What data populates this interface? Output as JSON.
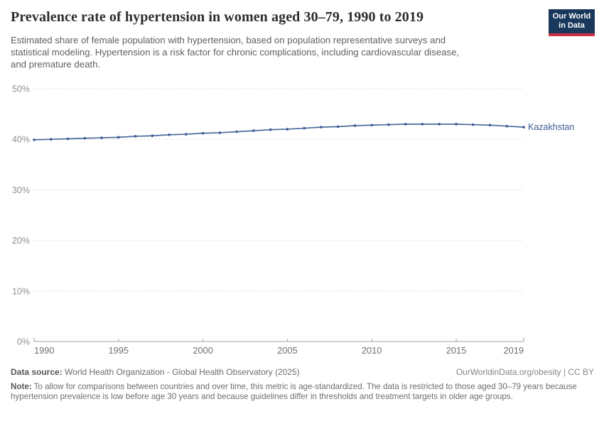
{
  "header": {
    "title": "Prevalence rate of hypertension in women aged 30–79, 1990 to 2019",
    "subtitle": "Estimated share of female population with hypertension, based on population representative surveys and\nstatistical modeling. Hypertension is a risk factor for chronic complications, including cardiovascular disease,\nand premature death.",
    "logo": {
      "line1": "Our World",
      "line2": "in Data",
      "bg_color": "#1a385c",
      "stripe_color": "#cf2e41"
    }
  },
  "chart_data": {
    "type": "line",
    "title": "Prevalence rate of hypertension in women aged 30–79, 1990 to 2019",
    "entity": "Kazakhstan",
    "unit": "%",
    "x": [
      1990,
      1991,
      1992,
      1993,
      1994,
      1995,
      1996,
      1997,
      1998,
      1999,
      2000,
      2001,
      2002,
      2003,
      2004,
      2005,
      2006,
      2007,
      2008,
      2009,
      2010,
      2011,
      2012,
      2013,
      2014,
      2015,
      2016,
      2017,
      2018,
      2019
    ],
    "values": [
      39.9,
      40.0,
      40.1,
      40.2,
      40.3,
      40.4,
      40.6,
      40.7,
      40.9,
      41.0,
      41.2,
      41.3,
      41.5,
      41.7,
      41.9,
      42.0,
      42.2,
      42.4,
      42.5,
      42.7,
      42.8,
      42.9,
      43.0,
      43.0,
      43.0,
      43.0,
      42.9,
      42.8,
      42.6,
      42.4
    ],
    "ylim": [
      0,
      50
    ],
    "yticks": [
      0,
      10,
      20,
      30,
      40,
      50
    ],
    "ytick_suffix": "%",
    "xticks": [
      1990,
      1995,
      2000,
      2005,
      2010,
      2015,
      2019
    ],
    "grid": "dashed horizontal, legend none, entity label at line end",
    "line_color": "#4c6a9c",
    "dot_color": "#3d5c94",
    "label_color": "#3d5c94",
    "grid_color": "#dcdcdc",
    "axis_color": "#a3a3a3",
    "ytick_label_color": "#8f8f8f",
    "xtick_label_color": "#6f6f6f"
  },
  "footer": {
    "source_label": "Data source:",
    "source_text": "World Health Organization - Global Health Observatory (2025)",
    "link_text": "OurWorldinData.org/obesity | CC BY",
    "note_label": "Note:",
    "note_text": "To allow for comparisons between countries and over time, this metric is age-standardized. The data is restricted to those aged 30–79 years because hypertension prevalence is low before age 30 years and because guidelines differ in thresholds and treatment targets in older age groups."
  }
}
